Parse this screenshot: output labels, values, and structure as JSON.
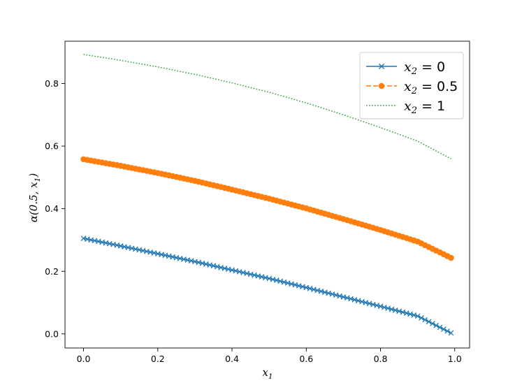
{
  "chart_data": {
    "type": "line",
    "xlabel": {
      "main": "x",
      "sub": "1"
    },
    "ylabel": {
      "pre": "α(0.5, x",
      "sub": "1",
      "post": ")"
    },
    "xlim": [
      -0.05,
      1.04
    ],
    "ylim": [
      -0.045,
      0.935
    ],
    "grid": false,
    "legend_position": "top-right",
    "x_ticks": [
      0.0,
      0.2,
      0.4,
      0.6,
      0.8,
      1.0
    ],
    "x_tick_labels": [
      "0.0",
      "0.2",
      "0.4",
      "0.6",
      "0.8",
      "1.0"
    ],
    "y_ticks": [
      0.0,
      0.2,
      0.4,
      0.6,
      0.8
    ],
    "y_tick_labels": [
      "0.0",
      "0.2",
      "0.4",
      "0.6",
      "0.8"
    ],
    "x": [
      0.0,
      0.1,
      0.2,
      0.3,
      0.4,
      0.5,
      0.6,
      0.7,
      0.8,
      0.9,
      0.99
    ],
    "series": [
      {
        "name": "x2 = 0",
        "legend": {
          "var": "x",
          "sub": "2",
          "rest": " = 0"
        },
        "color": "#1f77b4",
        "style": "solid",
        "marker": "x",
        "values": [
          0.305,
          0.281,
          0.256,
          0.231,
          0.204,
          0.177,
          0.148,
          0.118,
          0.088,
          0.057,
          0.003
        ]
      },
      {
        "name": "x2 = 0.5",
        "legend": {
          "var": "x",
          "sub": "2",
          "rest": " = 0.5"
        },
        "color": "#ff7f0e",
        "style": "dashed",
        "marker": "o",
        "values": [
          0.558,
          0.537,
          0.514,
          0.489,
          0.461,
          0.432,
          0.401,
          0.367,
          0.332,
          0.295,
          0.243
        ]
      },
      {
        "name": "x2 = 1",
        "legend": {
          "var": "x",
          "sub": "2",
          "rest": " = 1"
        },
        "color": "#2ca02c",
        "style": "dotted",
        "marker": "none",
        "values": [
          0.893,
          0.874,
          0.853,
          0.829,
          0.802,
          0.772,
          0.738,
          0.7,
          0.659,
          0.616,
          0.559
        ]
      }
    ]
  }
}
